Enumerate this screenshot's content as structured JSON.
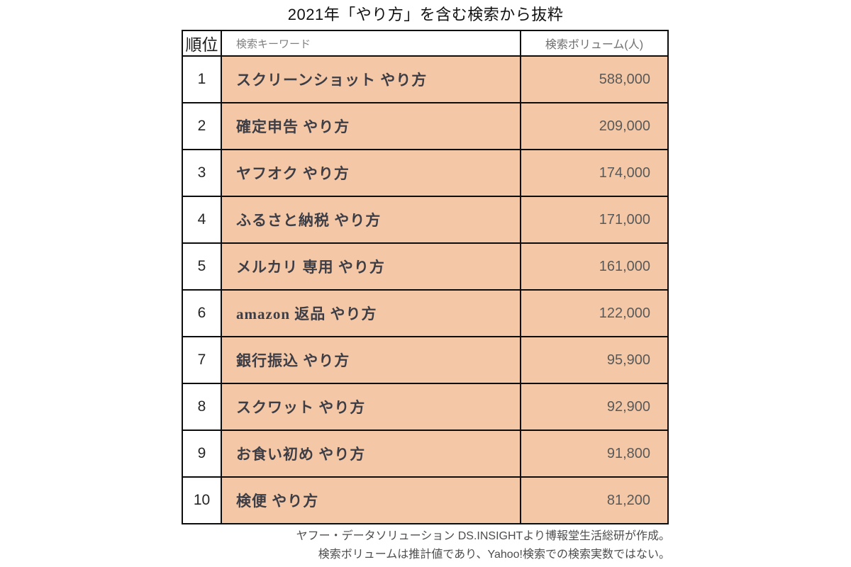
{
  "title": "2021年「やり方」を含む検索から抜粋",
  "table": {
    "headers": {
      "rank": "順位",
      "keyword": "検索キーワード",
      "volume": "検索ボリューム(人)"
    },
    "rows": [
      {
        "rank": "1",
        "keyword": "スクリーンショット やり方",
        "volume": "588,000"
      },
      {
        "rank": "2",
        "keyword": "確定申告 やり方",
        "volume": "209,000"
      },
      {
        "rank": "3",
        "keyword": "ヤフオク やり方",
        "volume": "174,000"
      },
      {
        "rank": "4",
        "keyword": "ふるさと納税 やり方",
        "volume": "171,000"
      },
      {
        "rank": "5",
        "keyword": "メルカリ 専用 やり方",
        "volume": "161,000"
      },
      {
        "rank": "6",
        "keyword": "amazon 返品 やり方",
        "volume": "122,000"
      },
      {
        "rank": "7",
        "keyword": "銀行振込 やり方",
        "volume": "95,900"
      },
      {
        "rank": "8",
        "keyword": "スクワット やり方",
        "volume": "92,900"
      },
      {
        "rank": "9",
        "keyword": "お食い初め やり方",
        "volume": "91,800"
      },
      {
        "rank": "10",
        "keyword": "検便 やり方",
        "volume": "81,200"
      }
    ]
  },
  "footer": {
    "line1": "ヤフー・データソリューション DS.INSIGHTより博報堂生活総研が作成。",
    "line2": "検索ボリュームは推計値であり、Yahoo!検索での検索実数ではない。"
  },
  "colors": {
    "cell_background": "#f4c8a6",
    "border": "#0d0d0d",
    "keyword_text": "#3d3d46",
    "volume_text": "#595959",
    "header_gray": "#808080",
    "footnote_text": "#4d4d4d"
  },
  "chart_data": {
    "type": "table",
    "title": "2021年「やり方」を含む検索から抜粋",
    "columns": [
      "順位",
      "検索キーワード",
      "検索ボリューム(人)"
    ],
    "rows": [
      [
        1,
        "スクリーンショット やり方",
        588000
      ],
      [
        2,
        "確定申告 やり方",
        209000
      ],
      [
        3,
        "ヤフオク やり方",
        174000
      ],
      [
        4,
        "ふるさと納税 やり方",
        171000
      ],
      [
        5,
        "メルカリ 専用 やり方",
        161000
      ],
      [
        6,
        "amazon 返品 やり方",
        122000
      ],
      [
        7,
        "銀行振込 やり方",
        95900
      ],
      [
        8,
        "スクワット やり方",
        92900
      ],
      [
        9,
        "お食い初め やり方",
        91800
      ],
      [
        10,
        "検便 やり方",
        81200
      ]
    ],
    "notes": [
      "ヤフー・データソリューション DS.INSIGHTより博報堂生活総研が作成。",
      "検索ボリュームは推計値であり、Yahoo!検索での検索実数ではない。"
    ]
  }
}
